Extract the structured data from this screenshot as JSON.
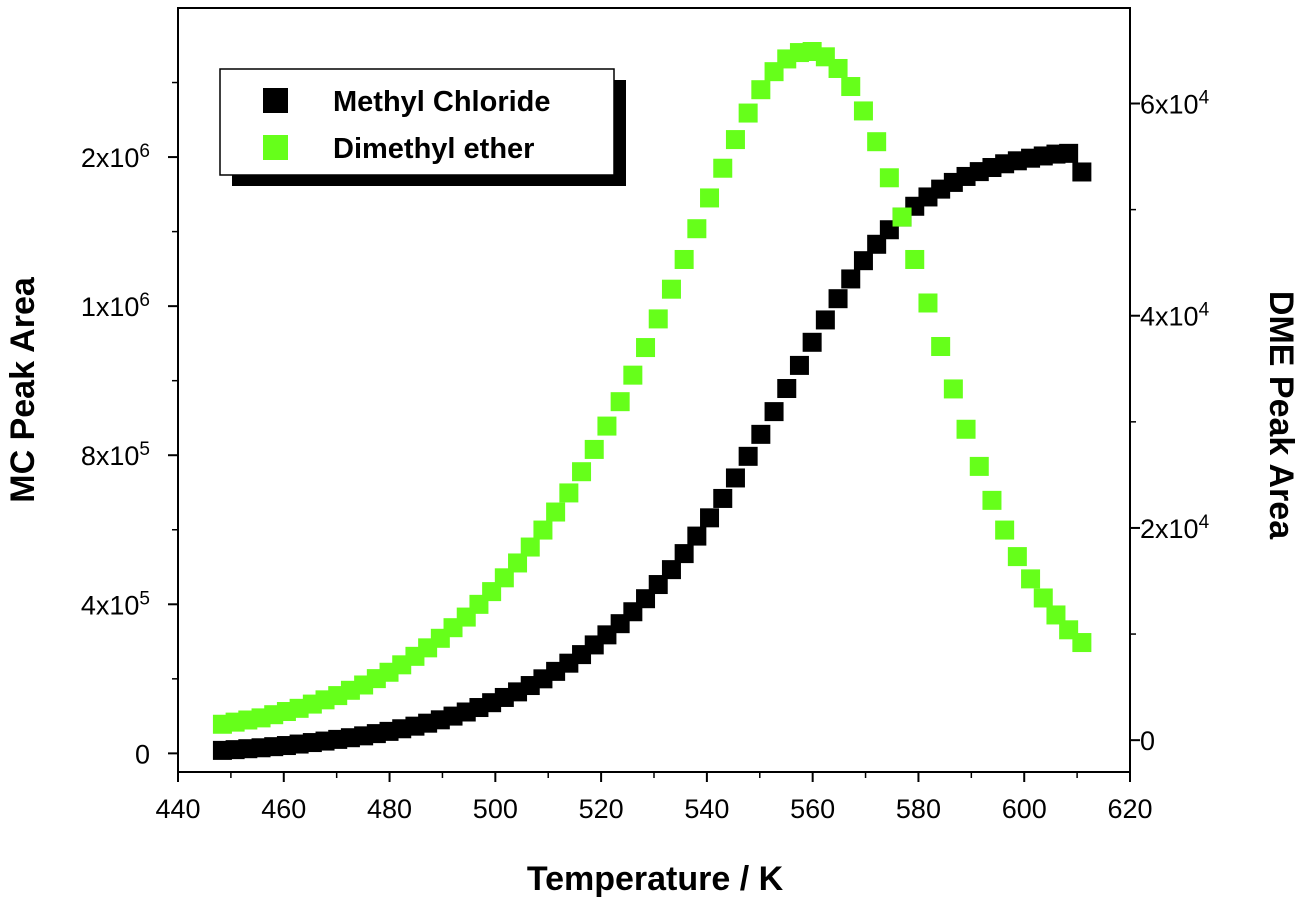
{
  "chart_data": {
    "type": "scatter",
    "xlabel": "Temperature / K",
    "ylabel": "MC Peak Area",
    "y2label": "DME Peak Area",
    "xlim": [
      440,
      620
    ],
    "ylim": [
      -50000,
      2000000
    ],
    "y2lim": [
      -3000,
      69000
    ],
    "xticks": [
      "440",
      "460",
      "480",
      "500",
      "520",
      "540",
      "560",
      "580",
      "600",
      "620"
    ],
    "yticks": [
      {
        "value": 0,
        "base": "0",
        "exp": ""
      },
      {
        "value": 400000,
        "base": "4x10",
        "exp": "5"
      },
      {
        "value": 800000,
        "base": "8x10",
        "exp": "5"
      },
      {
        "value": 1200000,
        "base": "1x10",
        "exp": "6"
      },
      {
        "value": 1600000,
        "base": "2x10",
        "exp": "6"
      }
    ],
    "y2ticks": [
      {
        "value": 0,
        "base": "0",
        "exp": ""
      },
      {
        "value": 20000,
        "base": "2x10",
        "exp": "4"
      },
      {
        "value": 40000,
        "base": "4x10",
        "exp": "4"
      },
      {
        "value": 60000,
        "base": "6x10",
        "exp": "4"
      }
    ],
    "legend_position": "top-left",
    "series": [
      {
        "name": "Methyl Chloride",
        "axis": "left",
        "color": "#000000",
        "x": [
          448.4,
          450.8,
          453.2,
          455.7,
          458.1,
          460.5,
          462.9,
          465.4,
          467.8,
          470.2,
          472.6,
          475.1,
          477.5,
          479.9,
          482.3,
          484.8,
          487.2,
          489.6,
          492.0,
          494.5,
          496.9,
          499.3,
          501.7,
          504.2,
          506.6,
          509.0,
          511.4,
          513.9,
          516.3,
          518.7,
          521.1,
          523.6,
          526.0,
          528.4,
          530.8,
          533.3,
          535.7,
          538.1,
          540.5,
          543.0,
          545.4,
          547.8,
          550.2,
          552.7,
          555.1,
          557.5,
          559.9,
          562.4,
          564.8,
          567.2,
          569.6,
          572.1,
          574.5,
          576.9,
          579.3,
          581.8,
          584.2,
          586.6,
          589.0,
          591.5,
          593.9,
          596.3,
          598.7,
          601.2,
          603.6,
          606.0,
          608.4,
          610.9
        ],
        "y": [
          8000,
          10000,
          12500,
          15000,
          18000,
          21000,
          25000,
          29000,
          33000,
          37500,
          42000,
          47000,
          53000,
          59000,
          66000,
          73000,
          81000,
          90000,
          100000,
          111000,
          123000,
          136000,
          150000,
          165000,
          182000,
          200000,
          220000,
          242000,
          265000,
          291000,
          318000,
          348000,
          380000,
          415000,
          453000,
          493000,
          536000,
          583000,
          632000,
          684000,
          739000,
          797000,
          856000,
          917000,
          979000,
          1041000,
          1103000,
          1163000,
          1220000,
          1273000,
          1322000,
          1366000,
          1405000,
          1439000,
          1468000,
          1493000,
          1514000,
          1532000,
          1548000,
          1561000,
          1572000,
          1582000,
          1590000,
          1597000,
          1603000,
          1608000,
          1610000,
          1560000
        ]
      },
      {
        "name": "Dimethyl ether",
        "axis": "right",
        "color": "#66ff1a",
        "x": [
          448.4,
          450.8,
          453.2,
          455.7,
          458.1,
          460.5,
          462.9,
          465.4,
          467.8,
          470.2,
          472.6,
          475.1,
          477.5,
          479.9,
          482.3,
          484.8,
          487.2,
          489.6,
          492.0,
          494.5,
          496.9,
          499.3,
          501.7,
          504.2,
          506.6,
          509.0,
          511.4,
          513.9,
          516.3,
          518.7,
          521.1,
          523.6,
          526.0,
          528.4,
          530.8,
          533.3,
          535.7,
          538.1,
          540.5,
          543.0,
          545.4,
          547.8,
          550.2,
          552.7,
          555.1,
          557.5,
          559.9,
          562.4,
          564.8,
          567.2,
          569.6,
          572.1,
          574.5,
          576.9,
          579.3,
          581.8,
          584.2,
          586.6,
          589.0,
          591.5,
          593.9,
          596.3,
          598.7,
          601.2,
          603.6,
          606.0,
          608.4,
          610.9
        ],
        "y": [
          1500,
          1700,
          1900,
          2100,
          2400,
          2700,
          3000,
          3400,
          3800,
          4200,
          4700,
          5200,
          5800,
          6400,
          7100,
          7900,
          8700,
          9600,
          10600,
          11600,
          12800,
          14000,
          15300,
          16700,
          18200,
          19800,
          21500,
          23300,
          25300,
          27400,
          29600,
          31900,
          34400,
          37000,
          39700,
          42500,
          45300,
          48200,
          51100,
          53900,
          56600,
          59100,
          61300,
          63000,
          64200,
          64800,
          64900,
          64400,
          63300,
          61600,
          59300,
          56400,
          53000,
          49300,
          45300,
          41200,
          37100,
          33100,
          29300,
          25800,
          22600,
          19800,
          17300,
          15200,
          13400,
          11800,
          10400,
          9200
        ]
      }
    ]
  }
}
